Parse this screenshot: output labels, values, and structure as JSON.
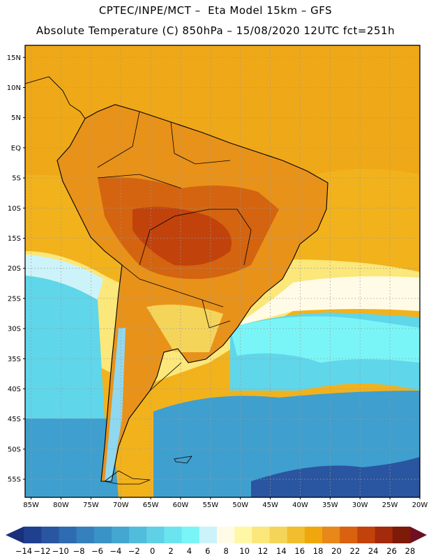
{
  "header": {
    "line1": "CPTEC/INPE/MCT –  Eta Model 15km – GFS",
    "line2": "Absolute Temperature (C) 850hPa – 15/08/2020 12UTC fct=251h"
  },
  "map": {
    "lon_range": [
      -86,
      -20
    ],
    "lat_range": [
      -58,
      17
    ],
    "lat_ticks": [
      {
        "value": 15,
        "label": "15N"
      },
      {
        "value": 10,
        "label": "10N"
      },
      {
        "value": 5,
        "label": "5N"
      },
      {
        "value": 0,
        "label": "EQ"
      },
      {
        "value": -5,
        "label": "5S"
      },
      {
        "value": -10,
        "label": "10S"
      },
      {
        "value": -15,
        "label": "15S"
      },
      {
        "value": -20,
        "label": "20S"
      },
      {
        "value": -25,
        "label": "25S"
      },
      {
        "value": -30,
        "label": "30S"
      },
      {
        "value": -35,
        "label": "35S"
      },
      {
        "value": -40,
        "label": "40S"
      },
      {
        "value": -45,
        "label": "45S"
      },
      {
        "value": -50,
        "label": "50S"
      },
      {
        "value": -55,
        "label": "55S"
      }
    ],
    "lon_ticks": [
      {
        "value": -85,
        "label": "85W"
      },
      {
        "value": -80,
        "label": "80W"
      },
      {
        "value": -75,
        "label": "75W"
      },
      {
        "value": -70,
        "label": "70W"
      },
      {
        "value": -65,
        "label": "65W"
      },
      {
        "value": -60,
        "label": "60W"
      },
      {
        "value": -55,
        "label": "55W"
      },
      {
        "value": -50,
        "label": "50W"
      },
      {
        "value": -45,
        "label": "45W"
      },
      {
        "value": -40,
        "label": "40W"
      },
      {
        "value": -35,
        "label": "35W"
      },
      {
        "value": -30,
        "label": "30W"
      },
      {
        "value": -25,
        "label": "25W"
      },
      {
        "value": -20,
        "label": "20W"
      }
    ],
    "colors": {
      "ocean_warm": "#f2b21c",
      "ocean_cool": "#5fd6ea",
      "ocean_cold": "#3f9fcf",
      "land_hot": "#d4640f",
      "land_warm": "#e8921a",
      "coast_line": "#000000",
      "grid_line": "#9a9a9a"
    }
  },
  "colorbar": {
    "labels": [
      "-14",
      "-12",
      "-10",
      "-8",
      "-6",
      "-4",
      "-2",
      "0",
      "2",
      "4",
      "6",
      "8",
      "10",
      "12",
      "14",
      "16",
      "18",
      "20",
      "22",
      "24",
      "26",
      "28"
    ],
    "colors": [
      "#1f3f8f",
      "#2a55a0",
      "#2f6bb0",
      "#3580bd",
      "#3a93c7",
      "#44a7d1",
      "#52bcdc",
      "#5fd0e6",
      "#6ce4ef",
      "#7af5f7",
      "#cdf3fa",
      "#fffbe6",
      "#fff7a6",
      "#fbe77a",
      "#f5d45a",
      "#f0be2e",
      "#f0a70d",
      "#e8871a",
      "#d9610f",
      "#c2420c",
      "#a32a0a",
      "#7d1a08"
    ],
    "low_arrow": "#1a2f7a",
    "high_arrow": "#6f0f24"
  }
}
